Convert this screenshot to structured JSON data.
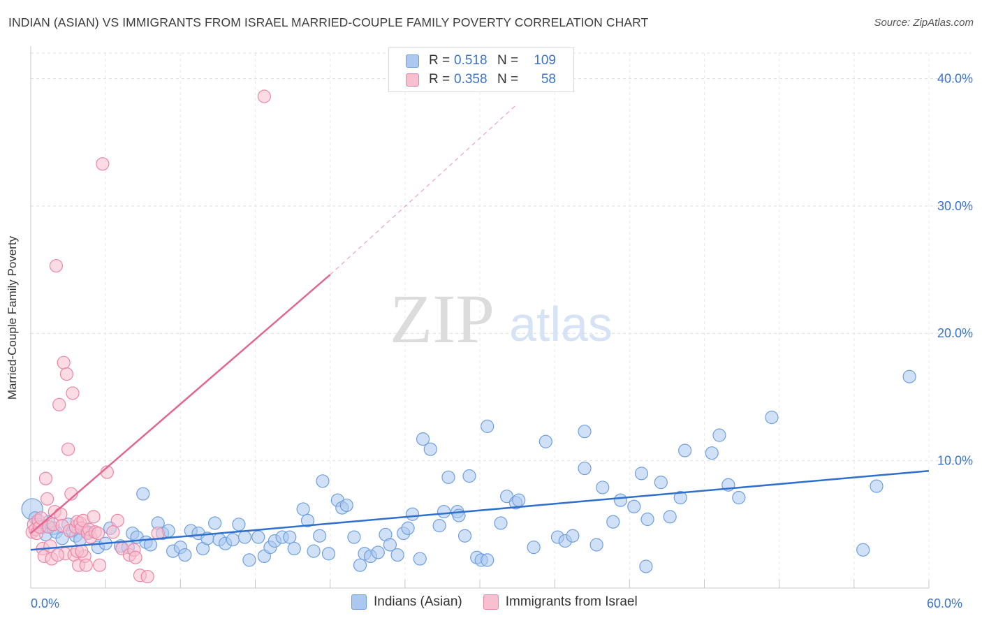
{
  "title": "INDIAN (ASIAN) VS IMMIGRANTS FROM ISRAEL MARRIED-COUPLE FAMILY POVERTY CORRELATION CHART",
  "source": "Source: ZipAtlas.com",
  "watermark": {
    "zip": "ZIP",
    "atlas": "atlas"
  },
  "legend_box": {
    "rows": [
      {
        "r_label": "R =",
        "r_value": "0.518",
        "n_label": "N =",
        "n_value": "109",
        "color": "#aac8f0",
        "border": "#6e9fe0"
      },
      {
        "r_label": "R =",
        "r_value": "0.358",
        "n_label": "N =",
        "n_value": "58",
        "color": "#f7bfd0",
        "border": "#ec86a6"
      }
    ]
  },
  "bottom_legend": [
    {
      "label": "Indians (Asian)",
      "color": "#aac8f0",
      "border": "#6e9fe0"
    },
    {
      "label": "Immigrants from Israel",
      "color": "#f7bfd0",
      "border": "#ec86a6"
    }
  ],
  "chart_data": {
    "type": "scatter",
    "title": "INDIAN (ASIAN) VS IMMIGRANTS FROM ISRAEL MARRIED-COUPLE FAMILY POVERTY CORRELATION CHART",
    "ylabel": "Married-Couple Family Poverty",
    "xlabel": "",
    "xlim": [
      0,
      60
    ],
    "ylim": [
      0,
      42
    ],
    "x_tick_labels": [
      {
        "value": 0,
        "label": "0.0%"
      },
      {
        "value": 60,
        "label": "60.0%"
      }
    ],
    "y_tick_labels": [
      {
        "value": 10,
        "label": "10.0%"
      },
      {
        "value": 20,
        "label": "20.0%"
      },
      {
        "value": 30,
        "label": "30.0%"
      },
      {
        "value": 40,
        "label": "40.0%"
      }
    ],
    "grid": true,
    "legend_placement": "top-center",
    "series": [
      {
        "name": "Indians (Asian)",
        "color": "#6e9fe0",
        "fill": "#aac8f0",
        "trend_color": "#2f6fce",
        "trend": {
          "x0": 0,
          "y0": 3.0,
          "x1": 60,
          "y1": 9.2,
          "dashed_to": null
        },
        "points": [
          [
            0.1,
            6.2
          ],
          [
            0.3,
            5.5
          ],
          [
            0.5,
            5.0
          ],
          [
            0.8,
            4.8
          ],
          [
            1.0,
            4.2
          ],
          [
            1.2,
            5.2
          ],
          [
            1.5,
            4.7
          ],
          [
            1.7,
            4.4
          ],
          [
            2.1,
            3.9
          ],
          [
            2.5,
            5.0
          ],
          [
            2.8,
            4.5
          ],
          [
            3.0,
            4.1
          ],
          [
            3.3,
            3.8
          ],
          [
            3.8,
            4.4
          ],
          [
            4.5,
            3.2
          ],
          [
            5.0,
            3.5
          ],
          [
            5.3,
            4.7
          ],
          [
            6.0,
            3.3
          ],
          [
            6.5,
            3.2
          ],
          [
            6.8,
            4.3
          ],
          [
            7.1,
            4.0
          ],
          [
            7.5,
            7.4
          ],
          [
            7.7,
            3.6
          ],
          [
            8.0,
            3.4
          ],
          [
            8.5,
            5.1
          ],
          [
            8.8,
            4.3
          ],
          [
            9.2,
            4.5
          ],
          [
            9.5,
            2.9
          ],
          [
            10.0,
            3.2
          ],
          [
            10.3,
            2.6
          ],
          [
            10.7,
            4.5
          ],
          [
            11.2,
            4.3
          ],
          [
            11.5,
            3.1
          ],
          [
            11.8,
            3.9
          ],
          [
            12.3,
            5.1
          ],
          [
            12.6,
            3.8
          ],
          [
            13.0,
            3.5
          ],
          [
            13.5,
            3.8
          ],
          [
            13.9,
            5.0
          ],
          [
            14.3,
            4.0
          ],
          [
            14.6,
            2.2
          ],
          [
            15.2,
            4.0
          ],
          [
            15.6,
            2.5
          ],
          [
            16.0,
            3.2
          ],
          [
            16.3,
            3.7
          ],
          [
            16.8,
            4.0
          ],
          [
            17.3,
            4.0
          ],
          [
            17.6,
            3.1
          ],
          [
            18.2,
            6.2
          ],
          [
            18.5,
            5.3
          ],
          [
            18.9,
            2.9
          ],
          [
            19.3,
            4.1
          ],
          [
            19.5,
            8.4
          ],
          [
            19.9,
            2.7
          ],
          [
            20.5,
            6.9
          ],
          [
            20.8,
            6.3
          ],
          [
            21.1,
            6.5
          ],
          [
            21.6,
            4.0
          ],
          [
            22.0,
            1.8
          ],
          [
            22.3,
            2.7
          ],
          [
            22.7,
            2.5
          ],
          [
            23.2,
            2.8
          ],
          [
            23.7,
            4.2
          ],
          [
            24.0,
            3.4
          ],
          [
            24.5,
            2.6
          ],
          [
            24.9,
            4.3
          ],
          [
            25.2,
            4.7
          ],
          [
            25.5,
            5.8
          ],
          [
            26.0,
            2.3
          ],
          [
            26.2,
            11.7
          ],
          [
            26.7,
            10.9
          ],
          [
            27.3,
            4.9
          ],
          [
            27.6,
            6.0
          ],
          [
            27.9,
            8.7
          ],
          [
            28.5,
            6.0
          ],
          [
            28.6,
            5.7
          ],
          [
            29.0,
            4.1
          ],
          [
            29.3,
            8.8
          ],
          [
            29.8,
            2.4
          ],
          [
            30.1,
            2.2
          ],
          [
            30.5,
            2.2
          ],
          [
            30.5,
            12.7
          ],
          [
            31.4,
            5.1
          ],
          [
            31.8,
            7.2
          ],
          [
            32.4,
            6.7
          ],
          [
            32.6,
            6.9
          ],
          [
            33.6,
            3.2
          ],
          [
            34.4,
            11.5
          ],
          [
            35.2,
            4.0
          ],
          [
            35.7,
            3.7
          ],
          [
            36.2,
            4.1
          ],
          [
            37.0,
            12.3
          ],
          [
            37.0,
            9.4
          ],
          [
            37.8,
            3.4
          ],
          [
            38.2,
            7.9
          ],
          [
            38.9,
            5.2
          ],
          [
            39.4,
            6.9
          ],
          [
            40.3,
            6.4
          ],
          [
            40.8,
            9.0
          ],
          [
            41.1,
            1.7
          ],
          [
            41.2,
            5.4
          ],
          [
            42.1,
            8.3
          ],
          [
            42.7,
            5.6
          ],
          [
            43.4,
            7.1
          ],
          [
            43.7,
            10.8
          ],
          [
            45.5,
            10.6
          ],
          [
            46.0,
            12.0
          ],
          [
            46.6,
            8.1
          ],
          [
            47.3,
            7.1
          ],
          [
            49.5,
            13.4
          ],
          [
            55.6,
            3.0
          ],
          [
            56.5,
            8.0
          ],
          [
            58.7,
            16.6
          ]
        ]
      },
      {
        "name": "Immigrants from Israel",
        "color": "#ec86a6",
        "fill": "#f7bfd0",
        "trend_color": "#e26690",
        "trend": {
          "x0": 0,
          "y0": 4.3,
          "x1": 20,
          "y1": 24.6,
          "dashed_to": {
            "x": 32.5,
            "y": 38.0
          }
        },
        "points": [
          [
            0.1,
            4.4
          ],
          [
            0.2,
            5.0
          ],
          [
            0.3,
            4.6
          ],
          [
            0.4,
            4.3
          ],
          [
            0.5,
            5.3
          ],
          [
            0.6,
            4.8
          ],
          [
            0.7,
            5.5
          ],
          [
            0.8,
            3.1
          ],
          [
            0.9,
            2.5
          ],
          [
            1.0,
            8.6
          ],
          [
            1.1,
            7.0
          ],
          [
            1.2,
            4.8
          ],
          [
            1.3,
            3.3
          ],
          [
            1.4,
            2.3
          ],
          [
            1.5,
            5.0
          ],
          [
            1.6,
            6.0
          ],
          [
            1.7,
            25.3
          ],
          [
            1.9,
            14.4
          ],
          [
            2.0,
            5.8
          ],
          [
            2.1,
            4.9
          ],
          [
            2.2,
            17.7
          ],
          [
            2.3,
            2.7
          ],
          [
            2.4,
            16.8
          ],
          [
            2.5,
            10.9
          ],
          [
            2.6,
            4.5
          ],
          [
            2.7,
            7.4
          ],
          [
            2.8,
            15.3
          ],
          [
            2.9,
            2.6
          ],
          [
            3.0,
            4.8
          ],
          [
            3.1,
            5.2
          ],
          [
            3.2,
            1.8
          ],
          [
            3.3,
            5.1
          ],
          [
            3.4,
            4.7
          ],
          [
            3.5,
            5.3
          ],
          [
            3.6,
            2.5
          ],
          [
            3.7,
            1.8
          ],
          [
            3.8,
            4.3
          ],
          [
            3.9,
            4.6
          ],
          [
            3.1,
            2.9
          ],
          [
            3.4,
            2.9
          ],
          [
            1.8,
            2.6
          ],
          [
            4.0,
            4.0
          ],
          [
            4.2,
            5.6
          ],
          [
            4.3,
            4.4
          ],
          [
            4.5,
            4.3
          ],
          [
            4.6,
            1.8
          ],
          [
            4.8,
            33.3
          ],
          [
            5.1,
            9.1
          ],
          [
            5.5,
            4.4
          ],
          [
            5.8,
            5.3
          ],
          [
            6.1,
            3.1
          ],
          [
            6.6,
            2.6
          ],
          [
            6.9,
            3.0
          ],
          [
            7.0,
            2.4
          ],
          [
            7.3,
            1.0
          ],
          [
            7.8,
            0.9
          ],
          [
            8.5,
            4.3
          ],
          [
            15.6,
            38.6
          ]
        ]
      }
    ]
  }
}
